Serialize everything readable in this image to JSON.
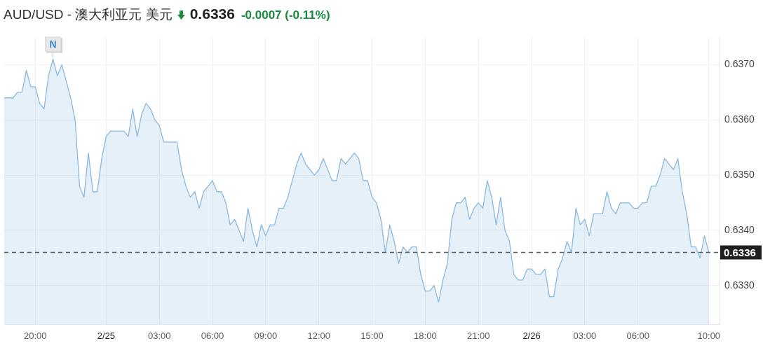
{
  "chart_data": {
    "type": "area",
    "title": "AUD/USD - 澳大利亚元 美元",
    "subtitle": "0.6336",
    "annotations": [
      "-0.0007 (-0.11%)",
      {
        "text": "N",
        "x": "--02-24T21:00",
        "y": 0.6371
      }
    ],
    "x": [
      "--02-24T18:15",
      "--02-24T18:45",
      "--02-24T19:00",
      "--02-24T19:15",
      "--02-24T19:30",
      "--02-24T19:45",
      "--02-24T20:00",
      "--02-24T20:15",
      "--02-24T20:30",
      "--02-24T20:45",
      "--02-24T21:00",
      "--02-24T21:15",
      "--02-24T21:30",
      "--02-24T21:45",
      "--02-24T22:00",
      "--02-24T22:15",
      "--02-24T22:30",
      "--02-24T22:45",
      "--02-24T23:00",
      "--02-24T23:15",
      "--02-24T23:30",
      "--02-24T23:45",
      "--02-25T00:00",
      "--02-25T00:15",
      "--02-25T01:00",
      "--02-25T01:15",
      "--02-25T01:30",
      "--02-25T01:45",
      "--02-25T02:00",
      "--02-25T02:15",
      "--02-25T02:30",
      "--02-25T02:45",
      "--02-25T03:00",
      "--02-25T03:15",
      "--02-25T04:00",
      "--02-25T04:15",
      "--02-25T04:30",
      "--02-25T04:45",
      "--02-25T05:00",
      "--02-25T05:15",
      "--02-25T05:30",
      "--02-25T05:45",
      "--02-25T06:00",
      "--02-25T06:15",
      "--02-25T06:30",
      "--02-25T06:45",
      "--02-25T07:00",
      "--02-25T07:15",
      "--02-25T07:30",
      "--02-25T07:45",
      "--02-25T08:00",
      "--02-25T08:15",
      "--02-25T08:30",
      "--02-25T08:45",
      "--02-25T09:00",
      "--02-25T09:15",
      "--02-25T09:30",
      "--02-25T09:45",
      "--02-25T10:00",
      "--02-25T10:15",
      "--02-25T10:30",
      "--02-25T10:45",
      "--02-25T11:00",
      "--02-25T11:15",
      "--02-25T11:30",
      "--02-25T11:45",
      "--02-25T12:00",
      "--02-25T12:15",
      "--02-25T12:30",
      "--02-25T12:45",
      "--02-25T13:00",
      "--02-25T13:15",
      "--02-25T13:30",
      "--02-25T13:45",
      "--02-25T14:00",
      "--02-25T14:15",
      "--02-25T14:30",
      "--02-25T14:45",
      "--02-25T15:00",
      "--02-25T15:15",
      "--02-25T15:30",
      "--02-25T15:45",
      "--02-25T16:00",
      "--02-25T16:15",
      "--02-25T16:30",
      "--02-25T16:45",
      "--02-25T17:00",
      "--02-25T17:15",
      "--02-25T17:30",
      "--02-25T17:45",
      "--02-25T18:00",
      "--02-25T18:15",
      "--02-25T18:30",
      "--02-25T18:45",
      "--02-25T19:00",
      "--02-25T19:15",
      "--02-25T19:30",
      "--02-25T19:45",
      "--02-25T20:00",
      "--02-25T20:15",
      "--02-25T20:30",
      "--02-25T20:45",
      "--02-25T21:00",
      "--02-25T21:15",
      "--02-25T21:30",
      "--02-25T21:45",
      "--02-25T22:00",
      "--02-25T22:15",
      "--02-25T22:30",
      "--02-25T22:45",
      "--02-25T23:00",
      "--02-25T23:15",
      "--02-25T23:30",
      "--02-25T23:45",
      "--02-26T00:00",
      "--02-26T00:15",
      "--02-26T00:30",
      "--02-26T00:45",
      "--02-26T01:00",
      "--02-26T01:15",
      "--02-26T01:30",
      "--02-26T01:45",
      "--02-26T02:00",
      "--02-26T02:15",
      "--02-26T02:30",
      "--02-26T02:45",
      "--02-26T03:00",
      "--02-26T03:15",
      "--02-26T03:30",
      "--02-26T04:00",
      "--02-26T04:15",
      "--02-26T04:30",
      "--02-26T04:45",
      "--02-26T05:00",
      "--02-26T05:30",
      "--02-26T05:45",
      "--02-26T06:00",
      "--02-26T06:15",
      "--02-26T06:30",
      "--02-26T06:45",
      "--02-26T07:00",
      "--02-26T07:15",
      "--02-26T07:30",
      "--02-26T07:45",
      "--02-26T08:00",
      "--02-26T08:15",
      "--02-26T08:30",
      "--02-26T08:45",
      "--02-26T09:00",
      "--02-26T09:15",
      "--02-26T09:30",
      "--02-26T09:45",
      "--02-26T10:00"
    ],
    "series": [
      {
        "color": "#8ab9df",
        "values": [
          0.6364,
          0.6364,
          0.6365,
          0.6365,
          0.6369,
          0.6366,
          0.6366,
          0.6363,
          0.6362,
          0.6368,
          0.6371,
          0.6368,
          0.637,
          0.6367,
          0.6364,
          0.636,
          0.6348,
          0.6346,
          0.6354,
          0.6347,
          0.6347,
          0.6353,
          0.6357,
          0.6358,
          0.6358,
          0.6357,
          0.6362,
          0.6357,
          0.6361,
          0.6363,
          0.6362,
          0.636,
          0.6359,
          0.6356,
          0.6356,
          0.6351,
          0.6348,
          0.6346,
          0.6347,
          0.6344,
          0.6347,
          0.6348,
          0.6349,
          0.6347,
          0.6347,
          0.6345,
          0.6341,
          0.6342,
          0.634,
          0.6338,
          0.6344,
          0.634,
          0.6337,
          0.6341,
          0.6339,
          0.6341,
          0.6341,
          0.6344,
          0.6344,
          0.6346,
          0.6349,
          0.6352,
          0.6354,
          0.6352,
          0.6351,
          0.635,
          0.6351,
          0.6353,
          0.6351,
          0.6349,
          0.6349,
          0.6353,
          0.6352,
          0.6353,
          0.6354,
          0.6353,
          0.6349,
          0.6349,
          0.6346,
          0.6345,
          0.6342,
          0.6336,
          0.6341,
          0.6338,
          0.6334,
          0.6337,
          0.6336,
          0.6337,
          0.6337,
          0.6332,
          0.6329,
          0.6329,
          0.633,
          0.6327,
          0.6331,
          0.6334,
          0.6342,
          0.6345,
          0.6345,
          0.6346,
          0.6342,
          0.6344,
          0.6345,
          0.6344,
          0.6349,
          0.6346,
          0.6341,
          0.6346,
          0.634,
          0.6338,
          0.6332,
          0.6331,
          0.6331,
          0.6333,
          0.6333,
          0.6332,
          0.6332,
          0.6333,
          0.6328,
          0.6328,
          0.6333,
          0.6335,
          0.6338,
          0.6336,
          0.6344,
          0.6341,
          0.6342,
          0.6339,
          0.6343,
          0.6343,
          0.6347,
          0.6344,
          0.6343,
          0.6345,
          0.6345,
          0.6344,
          0.6344,
          0.6345,
          0.6345,
          0.6348,
          0.6348,
          0.635,
          0.6353,
          0.6352,
          0.6351,
          0.6353,
          0.6347,
          0.6343,
          0.6337,
          0.6337,
          0.6335,
          0.6339,
          0.6336
        ]
      }
    ],
    "xlim": [
      "--02-24T18:15",
      "--02-26T10:36"
    ],
    "xticks": [
      {
        "value": "--02-24T20:00",
        "label": "20:00"
      },
      {
        "value": "--02-25T00:00",
        "label": "2/25"
      },
      {
        "value": "--02-25T03:00",
        "label": "03:00"
      },
      {
        "value": "--02-25T06:00",
        "label": "06:00"
      },
      {
        "value": "--02-25T09:00",
        "label": "09:00"
      },
      {
        "value": "--02-25T12:00",
        "label": "12:00"
      },
      {
        "value": "--02-25T15:00",
        "label": "15:00"
      },
      {
        "value": "--02-25T18:00",
        "label": "18:00"
      },
      {
        "value": "--02-25T21:00",
        "label": "21:00"
      },
      {
        "value": "--02-26T00:00",
        "label": "2/26"
      },
      {
        "value": "--02-26T03:00",
        "label": "03:00"
      },
      {
        "value": "--02-26T06:00",
        "label": "06:00"
      },
      {
        "value": "--02-26T10:00",
        "label": "10:00"
      }
    ],
    "ylim": [
      0.6323,
      0.6375
    ],
    "yticks": [
      {
        "value": 0.633,
        "label": "0.6330"
      },
      {
        "value": 0.634,
        "label": "0.6340"
      },
      {
        "value": 0.635,
        "label": "0.6350"
      },
      {
        "value": 0.636,
        "label": "0.6360"
      },
      {
        "value": 0.637,
        "label": "0.6370"
      }
    ],
    "grid": true,
    "ref_lines": [
      {
        "axis": "y",
        "value": 0.6336,
        "label": "0.6336",
        "color": "#5a5a5a",
        "line_style": "dashed"
      }
    ]
  }
}
